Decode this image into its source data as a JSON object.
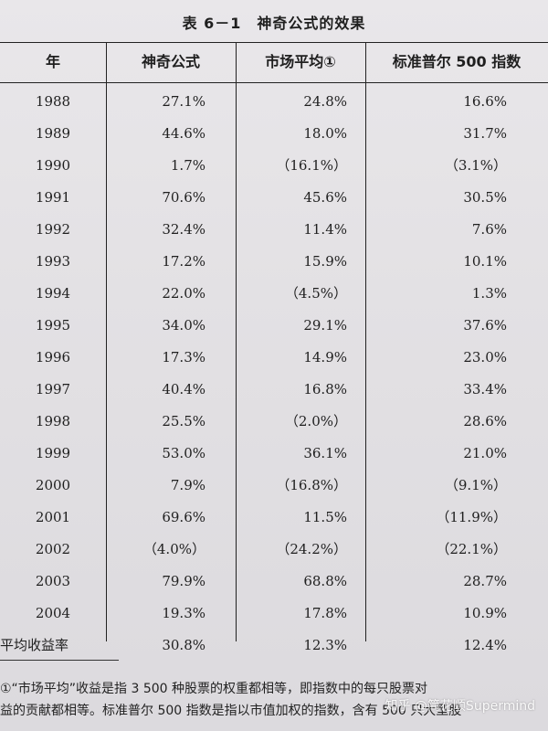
{
  "title": "表 6－1　神奇公式的效果",
  "headers": {
    "year": "年",
    "magic": "神奇公式",
    "market": "市场平均①",
    "sp500": "标准普尔 500 指数"
  },
  "rows": [
    {
      "year": "1988",
      "magic": "27.1%",
      "market": "24.8%",
      "sp500": "16.6%"
    },
    {
      "year": "1989",
      "magic": "44.6%",
      "market": "18.0%",
      "sp500": "31.7%"
    },
    {
      "year": "1990",
      "magic": "1.7%",
      "market": "（16.1%）",
      "sp500": "（3.1%）"
    },
    {
      "year": "1991",
      "magic": "70.6%",
      "market": "45.6%",
      "sp500": "30.5%"
    },
    {
      "year": "1992",
      "magic": "32.4%",
      "market": "11.4%",
      "sp500": "7.6%"
    },
    {
      "year": "1993",
      "magic": "17.2%",
      "market": "15.9%",
      "sp500": "10.1%"
    },
    {
      "year": "1994",
      "magic": "22.0%",
      "market": "（4.5%）",
      "sp500": "1.3%"
    },
    {
      "year": "1995",
      "magic": "34.0%",
      "market": "29.1%",
      "sp500": "37.6%"
    },
    {
      "year": "1996",
      "magic": "17.3%",
      "market": "14.9%",
      "sp500": "23.0%"
    },
    {
      "year": "1997",
      "magic": "40.4%",
      "market": "16.8%",
      "sp500": "33.4%"
    },
    {
      "year": "1998",
      "magic": "25.5%",
      "market": "（2.0%）",
      "sp500": "28.6%"
    },
    {
      "year": "1999",
      "magic": "53.0%",
      "market": "36.1%",
      "sp500": "21.0%"
    },
    {
      "year": "2000",
      "magic": "7.9%",
      "market": "（16.8%）",
      "sp500": "（9.1%）"
    },
    {
      "year": "2001",
      "magic": "69.6%",
      "market": "11.5%",
      "sp500": "（11.9%）"
    },
    {
      "year": "2002",
      "magic": "（4.0%）",
      "market": "（24.2%）",
      "sp500": "（22.1%）"
    },
    {
      "year": "2003",
      "magic": "79.9%",
      "market": "68.8%",
      "sp500": "28.7%"
    },
    {
      "year": "2004",
      "magic": "19.3%",
      "market": "17.8%",
      "sp500": "10.9%"
    },
    {
      "year": "平均收益率",
      "magic": "30.8%",
      "market": "12.3%",
      "sp500": "12.4%"
    }
  ],
  "footnote": {
    "line1": "①“市场平均”收益是指 3 500 种股票的权重都相等，即指数中的每只股票对",
    "line2": "益的贡献都相等。标准普尔 500 指数是指以市值加权的指数，含有 500 只大型股"
  },
  "watermark": "知乎 @简花顺Supermind"
}
